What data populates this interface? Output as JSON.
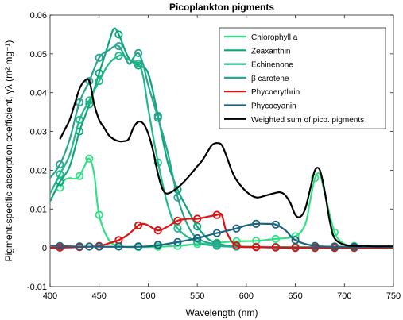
{
  "chart_data": {
    "type": "line",
    "title": "Picoplankton pigments",
    "xlabel": "Wavelength (nm)",
    "ylabel": "Pigment-specific absorption coefficient, γλ (m² mg⁻¹)",
    "xlim": [
      400,
      750
    ],
    "ylim": [
      -0.01,
      0.06
    ],
    "xticks": [
      400,
      450,
      500,
      550,
      600,
      650,
      700,
      750
    ],
    "yticks": [
      -0.01,
      0,
      0.01,
      0.02,
      0.03,
      0.04,
      0.05,
      0.06
    ],
    "xtick_labels": [
      "400",
      "450",
      "500",
      "550",
      "600",
      "650",
      "700",
      "750"
    ],
    "ytick_labels": [
      "-0.01",
      "0",
      "0.01",
      "0.02",
      "0.03",
      "0.04",
      "0.05",
      "0.06"
    ],
    "grid": false,
    "legend_position": "top-right",
    "marker_x": [
      410,
      430,
      440,
      450,
      470,
      490,
      510,
      530,
      550,
      570,
      590,
      610,
      630,
      650,
      670,
      690,
      710
    ],
    "series": [
      {
        "name": "Chlorophyll a",
        "color": "#33e085",
        "x": [
          410,
          415,
          420,
          425,
          430,
          435,
          440,
          445,
          450,
          460,
          470,
          480,
          490,
          500,
          510,
          530,
          550,
          570,
          590,
          610,
          630,
          650,
          660,
          665,
          670,
          675,
          680,
          690,
          700,
          710,
          720,
          750
        ],
        "y": [
          0.0155,
          0.0175,
          0.018,
          0.0178,
          0.0185,
          0.021,
          0.023,
          0.019,
          0.0085,
          0.002,
          0.0005,
          0.0002,
          0.0002,
          0.0002,
          0.0003,
          0.0005,
          0.001,
          0.0013,
          0.0017,
          0.0018,
          0.0023,
          0.003,
          0.006,
          0.012,
          0.018,
          0.019,
          0.014,
          0.004,
          0.001,
          0.0005,
          0.0003,
          0.0002
        ]
      },
      {
        "name": "Zeaxanthin",
        "color": "#0da67a",
        "x": [
          400,
          410,
          420,
          430,
          440,
          450,
          460,
          465,
          470,
          480,
          490,
          500,
          510,
          520,
          530,
          540,
          550,
          560,
          570,
          580,
          600,
          650,
          700,
          750
        ],
        "y": [
          0.012,
          0.017,
          0.021,
          0.03,
          0.037,
          0.045,
          0.053,
          0.0565,
          0.055,
          0.049,
          0.047,
          0.045,
          0.034,
          0.022,
          0.015,
          0.01,
          0.0055,
          0.0025,
          0.0012,
          0.0006,
          0.0003,
          0.0002,
          0.0001,
          0.0001
        ]
      },
      {
        "name": "Echinenone",
        "color": "#1fb98a",
        "x": [
          400,
          410,
          420,
          430,
          440,
          450,
          460,
          470,
          475,
          480,
          490,
          495,
          500,
          510,
          520,
          530,
          550,
          570,
          600,
          650,
          700,
          750
        ],
        "y": [
          0.014,
          0.019,
          0.024,
          0.033,
          0.038,
          0.043,
          0.0475,
          0.0495,
          0.0495,
          0.0485,
          0.0475,
          0.044,
          0.036,
          0.022,
          0.011,
          0.005,
          0.0015,
          0.0005,
          0.0002,
          0.0001,
          0.0001,
          0.0001
        ]
      },
      {
        "name": "β carotene",
        "color": "#2aa58f",
        "x": [
          400,
          410,
          420,
          430,
          440,
          450,
          460,
          470,
          480,
          485,
          490,
          495,
          500,
          510,
          520,
          530,
          540,
          550,
          570,
          600,
          650,
          700,
          750
        ],
        "y": [
          0.018,
          0.0215,
          0.028,
          0.0375,
          0.043,
          0.049,
          0.051,
          0.052,
          0.0475,
          0.049,
          0.0502,
          0.0472,
          0.042,
          0.0335,
          0.0245,
          0.013,
          0.006,
          0.0025,
          0.0008,
          0.0003,
          0.0002,
          0.0001,
          0.0001
        ]
      },
      {
        "name": "Phycoerythrin",
        "color": "#e01010",
        "x": [
          400,
          430,
          450,
          460,
          470,
          480,
          490,
          495,
          500,
          510,
          520,
          530,
          540,
          550,
          560,
          570,
          575,
          580,
          590,
          610,
          630,
          650,
          700,
          750
        ],
        "y": [
          0.0,
          0.0002,
          0.0005,
          0.0012,
          0.002,
          0.0035,
          0.0058,
          0.0062,
          0.0058,
          0.0045,
          0.0055,
          0.007,
          0.0075,
          0.0075,
          0.008,
          0.0085,
          0.0085,
          0.004,
          0.0006,
          0.0002,
          0.0001,
          0.0,
          0.0,
          0.0
        ]
      },
      {
        "name": "Phycocyanin",
        "color": "#1b6480",
        "x": [
          400,
          450,
          500,
          530,
          550,
          570,
          590,
          600,
          610,
          620,
          630,
          640,
          650,
          670,
          700,
          750
        ],
        "y": [
          0.0005,
          0.0003,
          0.0004,
          0.0015,
          0.0025,
          0.0038,
          0.005,
          0.0058,
          0.0062,
          0.0062,
          0.006,
          0.0045,
          0.002,
          0.0005,
          0.0003,
          0.0002
        ]
      },
      {
        "name": "Weighted sum of pico. pigments",
        "color": "#000000",
        "x": [
          410,
          415,
          420,
          425,
          430,
          435,
          440,
          445,
          450,
          455,
          460,
          465,
          470,
          475,
          480,
          485,
          490,
          495,
          500,
          505,
          510,
          515,
          520,
          530,
          540,
          550,
          555,
          560,
          565,
          570,
          575,
          580,
          585,
          590,
          600,
          610,
          620,
          630,
          635,
          640,
          645,
          650,
          655,
          660,
          665,
          670,
          675,
          680,
          685,
          690,
          700,
          710,
          720,
          730,
          740,
          750
        ],
        "y": [
          0.028,
          0.0305,
          0.033,
          0.037,
          0.041,
          0.043,
          0.043,
          0.037,
          0.033,
          0.031,
          0.029,
          0.028,
          0.0275,
          0.0275,
          0.028,
          0.031,
          0.0325,
          0.032,
          0.0295,
          0.025,
          0.019,
          0.015,
          0.014,
          0.0155,
          0.018,
          0.021,
          0.0225,
          0.0245,
          0.0265,
          0.027,
          0.0265,
          0.0235,
          0.02,
          0.0175,
          0.0145,
          0.013,
          0.0135,
          0.0142,
          0.0143,
          0.0135,
          0.0115,
          0.0085,
          0.008,
          0.01,
          0.015,
          0.02,
          0.02,
          0.0145,
          0.007,
          0.0025,
          0.0008,
          0.0005,
          0.0005,
          0.0004,
          0.0004,
          0.0004
        ]
      }
    ]
  }
}
